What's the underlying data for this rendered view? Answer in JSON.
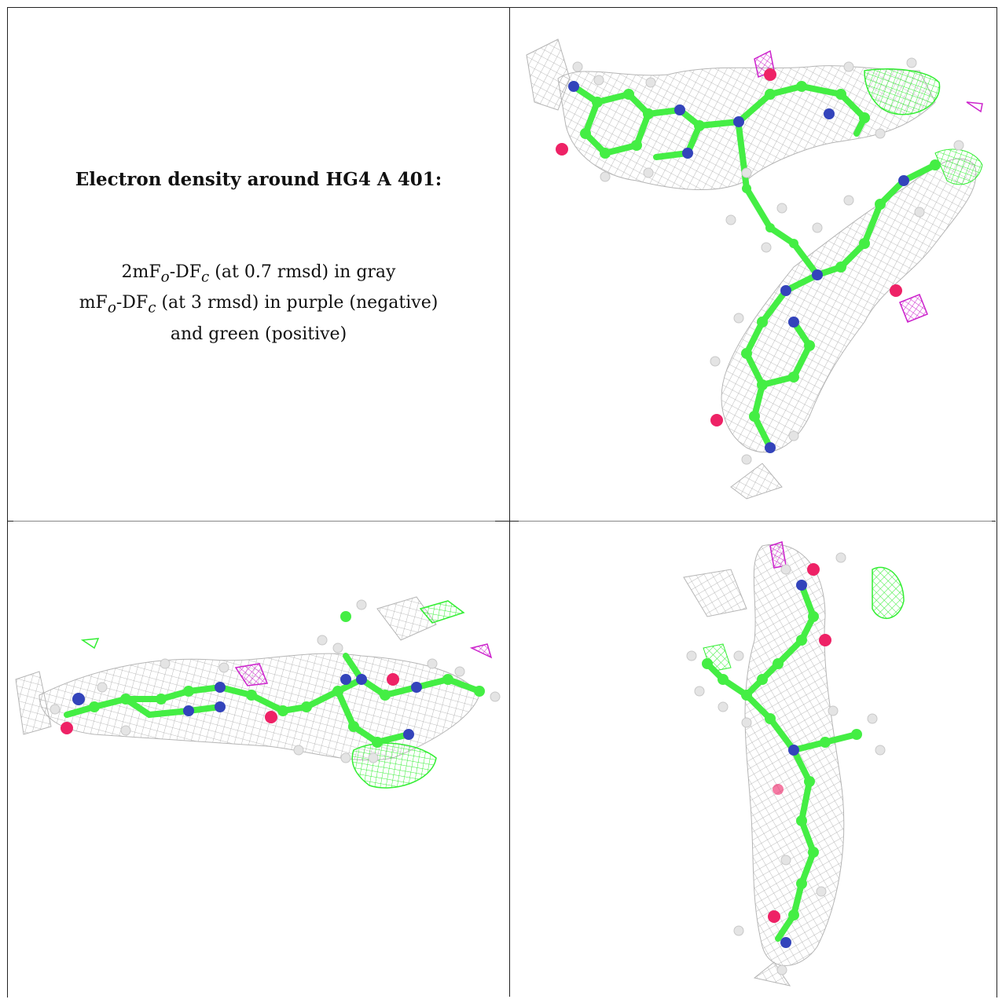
{
  "caption": {
    "title": "Electron density around HG4 A 401:",
    "lines": [
      "2mFo-DFc (at 0.7 rmsd) in gray",
      "mFo-DFc (at 3 rmsd) in purple (negative)",
      "and green (positive)"
    ]
  },
  "colors": {
    "gray_mesh": "#b0b0b0",
    "negative_mesh": "#cc22cc",
    "positive_mesh": "#33ee33",
    "carbon": "#44ee44",
    "nitrogen": "#3344bb",
    "oxygen": "#ee2266",
    "hydrogen": "#e6e6e6"
  },
  "panels": [
    {
      "name": "top-right-view"
    },
    {
      "name": "bottom-left-view"
    },
    {
      "name": "bottom-right-view"
    }
  ]
}
